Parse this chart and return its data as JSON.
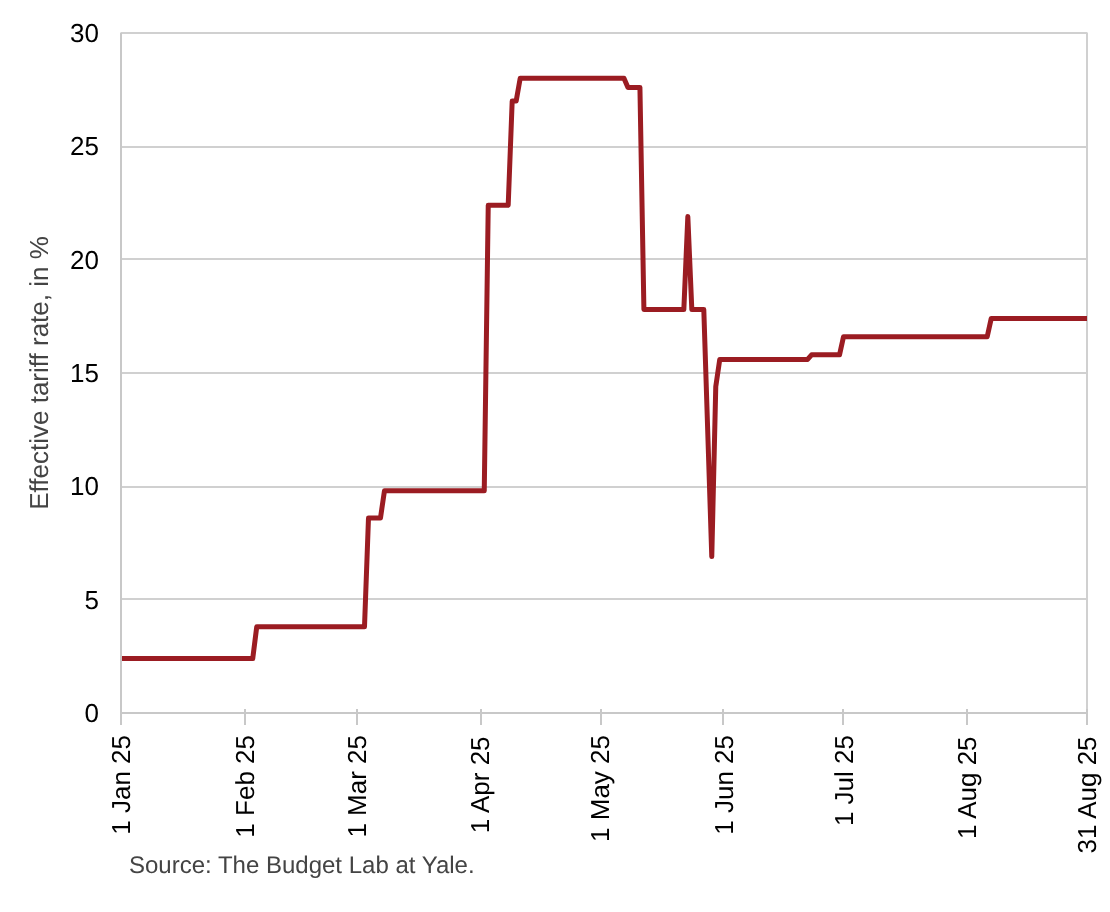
{
  "chart_data": {
    "type": "line",
    "ylabel": "Effective tariff rate, in %",
    "x": [
      "2025-01-01",
      "2025-02-03",
      "2025-02-04",
      "2025-03-03",
      "2025-03-04",
      "2025-03-07",
      "2025-03-08",
      "2025-04-02",
      "2025-04-03",
      "2025-04-08",
      "2025-04-09",
      "2025-04-10",
      "2025-04-11",
      "2025-05-07",
      "2025-05-08",
      "2025-05-11",
      "2025-05-12",
      "2025-05-22",
      "2025-05-23",
      "2025-05-24",
      "2025-05-27",
      "2025-05-29",
      "2025-05-30",
      "2025-05-31",
      "2025-06-22",
      "2025-06-23",
      "2025-06-30",
      "2025-07-01",
      "2025-08-06",
      "2025-08-07",
      "2025-08-31"
    ],
    "series": [
      {
        "color": "#9b1c22",
        "values": [
          2.4,
          2.4,
          3.8,
          3.8,
          8.6,
          8.6,
          9.8,
          9.8,
          22.4,
          22.4,
          27.0,
          27.0,
          28.0,
          28.0,
          27.6,
          27.6,
          17.8,
          17.8,
          21.9,
          17.8,
          17.8,
          6.9,
          14.4,
          15.6,
          15.6,
          15.8,
          15.8,
          16.6,
          16.6,
          17.4,
          17.4
        ]
      }
    ],
    "xlim": [
      "2025-01-01",
      "2025-08-31"
    ],
    "xticks": [
      {
        "value": "2025-01-01",
        "label": "1 Jan 25"
      },
      {
        "value": "2025-02-01",
        "label": "1 Feb 25"
      },
      {
        "value": "2025-03-01",
        "label": "1 Mar 25"
      },
      {
        "value": "2025-04-01",
        "label": "1 Apr 25"
      },
      {
        "value": "2025-05-01",
        "label": "1 May 25"
      },
      {
        "value": "2025-06-01",
        "label": "1 Jun 25"
      },
      {
        "value": "2025-07-01",
        "label": "1 Jul 25"
      },
      {
        "value": "2025-08-01",
        "label": "1 Aug 25"
      },
      {
        "value": "2025-08-31",
        "label": "31 Aug 25"
      }
    ],
    "ylim": [
      0,
      30
    ],
    "yticks": [
      0,
      5,
      10,
      15,
      20,
      25,
      30
    ],
    "grid": "y",
    "line_style": "solid",
    "marker": "none",
    "annotations": [
      "Source: The Budget Lab at Yale."
    ]
  }
}
